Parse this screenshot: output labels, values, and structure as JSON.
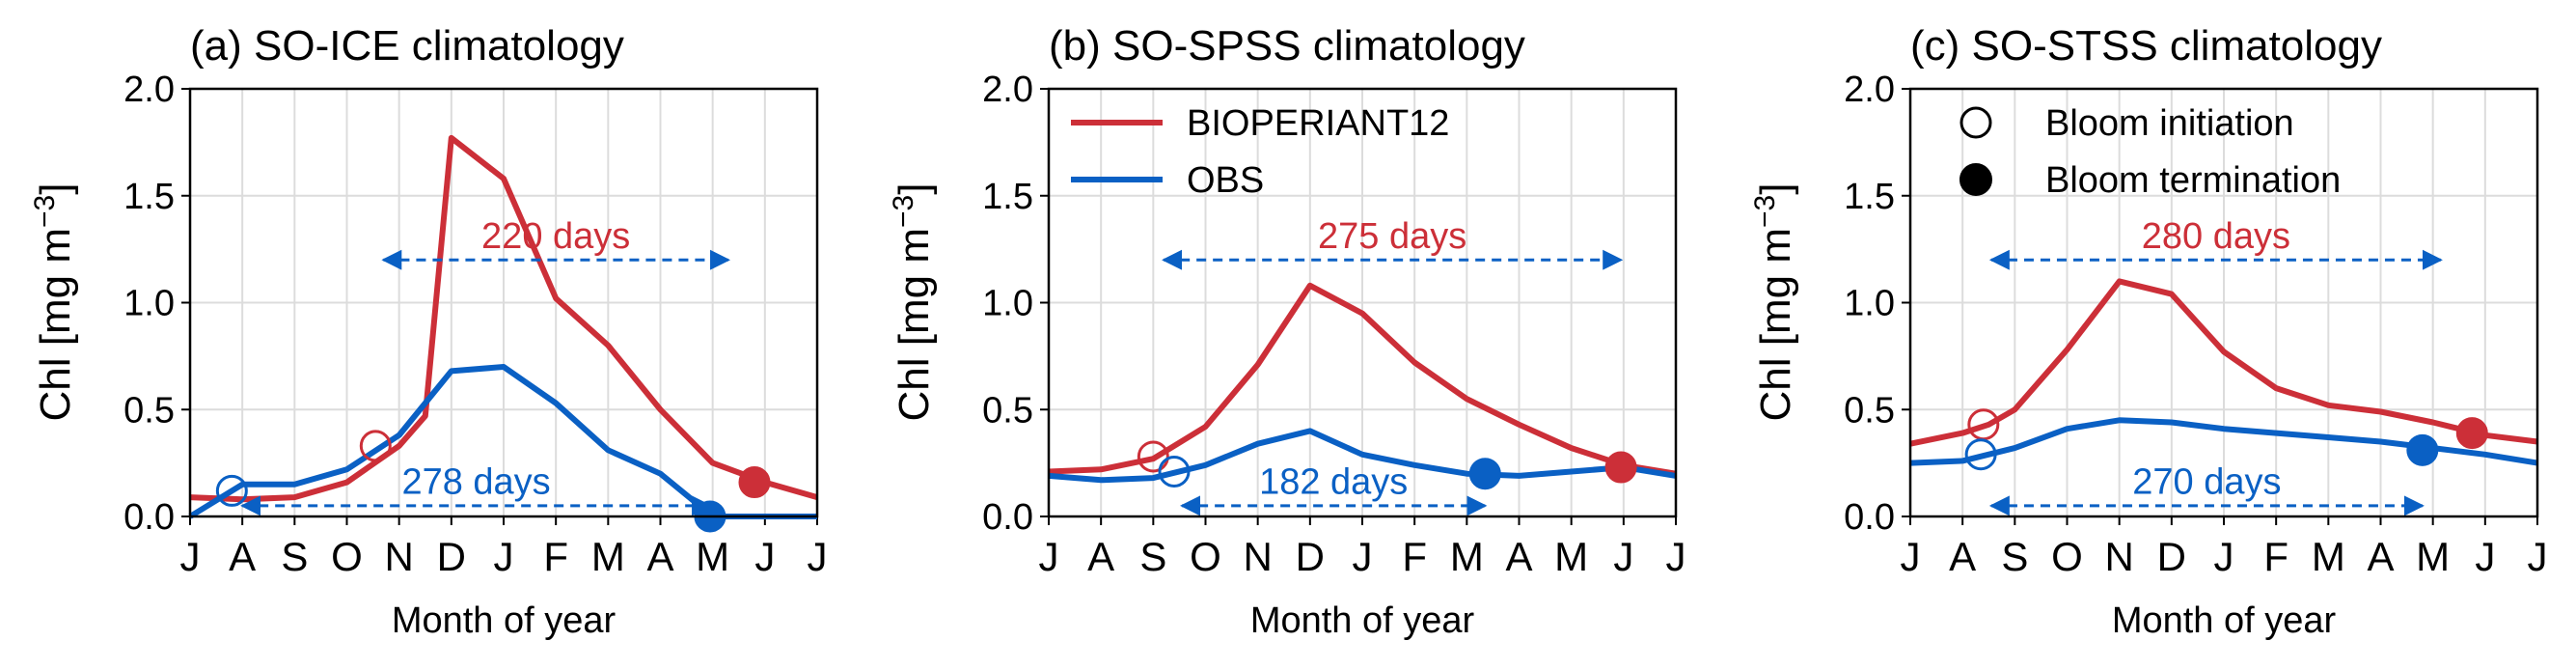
{
  "colors": {
    "model": "#cc2f38",
    "obs": "#0a60c4",
    "grid": "#dcdcdc"
  },
  "chart_data": [
    {
      "type": "line",
      "title": "(a) SO-ICE climatology",
      "xlabel": "Month of year",
      "ylabel": "Chl [mg m",
      "ylabel_sup": "−3",
      "ylabel_end": "]",
      "ylim": [
        0,
        2.0
      ],
      "yticks": [
        "0.0",
        "0.5",
        "1.0",
        "1.5",
        "2.0"
      ],
      "xticks": [
        "J",
        "A",
        "S",
        "O",
        "N",
        "D",
        "J",
        "F",
        "M",
        "A",
        "M",
        "J",
        "J"
      ],
      "grid": true,
      "series": [
        {
          "name": "BIOPERIANT12",
          "color": "#cc2f38",
          "x": [
            0,
            1,
            2,
            3,
            4,
            4.5,
            5,
            6,
            7,
            8,
            9,
            10,
            11,
            12
          ],
          "y": [
            0.09,
            0.08,
            0.09,
            0.16,
            0.33,
            0.47,
            1.77,
            1.58,
            1.02,
            0.8,
            0.5,
            0.25,
            0.16,
            0.09
          ]
        },
        {
          "name": "OBS",
          "color": "#0a60c4",
          "x": [
            0,
            1,
            2,
            3,
            4,
            5,
            6,
            7,
            8,
            9,
            10,
            11,
            12
          ],
          "y": [
            0.0,
            0.15,
            0.15,
            0.22,
            0.38,
            0.68,
            0.7,
            0.53,
            0.31,
            0.2,
            0.0,
            0.0,
            0.0
          ]
        }
      ],
      "markers": [
        {
          "kind": "initiation",
          "series": "BIOPERIANT12",
          "x": 3.55,
          "y": 0.33
        },
        {
          "kind": "termination",
          "series": "BIOPERIANT12",
          "x": 10.8,
          "y": 0.16
        },
        {
          "kind": "initiation",
          "series": "OBS",
          "x": 0.8,
          "y": 0.12
        },
        {
          "kind": "termination",
          "series": "OBS",
          "x": 9.95,
          "y": 0.0
        }
      ],
      "spans": [
        {
          "series": "BIOPERIANT12",
          "x0": 3.7,
          "x1": 10.3,
          "y": 1.2,
          "label": "220 days",
          "label_y": 1.22
        },
        {
          "series": "OBS",
          "x0": 1.0,
          "x1": 9.95,
          "y": 0.05,
          "label": "278 days",
          "label_y": 0.07
        }
      ]
    },
    {
      "type": "line",
      "title": "(b) SO-SPSS climatology",
      "xlabel": "Month of year",
      "ylabel": "Chl [mg m",
      "ylabel_sup": "−3",
      "ylabel_end": "]",
      "ylim": [
        0,
        2.0
      ],
      "yticks": [
        "0.0",
        "0.5",
        "1.0",
        "1.5",
        "2.0"
      ],
      "xticks": [
        "J",
        "A",
        "S",
        "O",
        "N",
        "D",
        "J",
        "F",
        "M",
        "A",
        "M",
        "J",
        "J"
      ],
      "grid": true,
      "series": [
        {
          "name": "BIOPERIANT12",
          "color": "#cc2f38",
          "x": [
            0,
            1,
            2,
            3,
            4,
            5,
            6,
            7,
            8,
            9,
            10,
            11,
            12
          ],
          "y": [
            0.21,
            0.22,
            0.27,
            0.42,
            0.71,
            1.08,
            0.95,
            0.72,
            0.55,
            0.43,
            0.32,
            0.24,
            0.2
          ]
        },
        {
          "name": "OBS",
          "color": "#0a60c4",
          "x": [
            0,
            1,
            2,
            3,
            4,
            5,
            6,
            7,
            8,
            9,
            10,
            11,
            12
          ],
          "y": [
            0.19,
            0.17,
            0.18,
            0.24,
            0.34,
            0.4,
            0.29,
            0.24,
            0.2,
            0.19,
            0.21,
            0.23,
            0.19
          ]
        }
      ],
      "markers": [
        {
          "kind": "initiation",
          "series": "BIOPERIANT12",
          "x": 2.0,
          "y": 0.28
        },
        {
          "kind": "termination",
          "series": "BIOPERIANT12",
          "x": 10.95,
          "y": 0.23
        },
        {
          "kind": "initiation",
          "series": "OBS",
          "x": 2.4,
          "y": 0.21
        },
        {
          "kind": "termination",
          "series": "OBS",
          "x": 8.35,
          "y": 0.2
        }
      ],
      "spans": [
        {
          "series": "BIOPERIANT12",
          "x0": 2.2,
          "x1": 10.95,
          "y": 1.2,
          "label": "275 days",
          "label_y": 1.22
        },
        {
          "series": "OBS",
          "x0": 2.55,
          "x1": 8.35,
          "y": 0.05,
          "label": "182 days",
          "label_y": 0.07
        }
      ],
      "legend": {
        "placement": "top-left",
        "entries": [
          {
            "label": "BIOPERIANT12",
            "color": "#cc2f38"
          },
          {
            "label": "OBS",
            "color": "#0a60c4"
          }
        ]
      }
    },
    {
      "type": "line",
      "title": "(c) SO-STSS climatology",
      "xlabel": "Month of year",
      "ylabel": "Chl [mg m",
      "ylabel_sup": "−3",
      "ylabel_end": "]",
      "ylim": [
        0,
        2.0
      ],
      "yticks": [
        "0.0",
        "0.5",
        "1.0",
        "1.5",
        "2.0"
      ],
      "xticks": [
        "J",
        "A",
        "S",
        "O",
        "N",
        "D",
        "J",
        "F",
        "M",
        "A",
        "M",
        "J",
        "J"
      ],
      "grid": true,
      "series": [
        {
          "name": "BIOPERIANT12",
          "color": "#cc2f38",
          "x": [
            0,
            1,
            1.5,
            2,
            3,
            4,
            5,
            6,
            7,
            8,
            9,
            10,
            11,
            12
          ],
          "y": [
            0.34,
            0.39,
            0.43,
            0.5,
            0.78,
            1.1,
            1.04,
            0.77,
            0.6,
            0.52,
            0.49,
            0.44,
            0.38,
            0.35
          ]
        },
        {
          "name": "OBS",
          "color": "#0a60c4",
          "x": [
            0,
            1,
            2,
            3,
            4,
            5,
            6,
            7,
            8,
            9,
            10,
            11,
            12
          ],
          "y": [
            0.25,
            0.26,
            0.32,
            0.41,
            0.45,
            0.44,
            0.41,
            0.39,
            0.37,
            0.35,
            0.32,
            0.29,
            0.25
          ]
        }
      ],
      "markers": [
        {
          "kind": "initiation",
          "series": "BIOPERIANT12",
          "x": 1.4,
          "y": 0.43
        },
        {
          "kind": "termination",
          "series": "BIOPERIANT12",
          "x": 10.75,
          "y": 0.39
        },
        {
          "kind": "initiation",
          "series": "OBS",
          "x": 1.35,
          "y": 0.29
        },
        {
          "kind": "termination",
          "series": "OBS",
          "x": 9.8,
          "y": 0.31
        }
      ],
      "spans": [
        {
          "series": "BIOPERIANT12",
          "x0": 1.55,
          "x1": 10.15,
          "y": 1.2,
          "label": "280 days",
          "label_y": 1.22
        },
        {
          "series": "OBS",
          "x0": 1.55,
          "x1": 9.8,
          "y": 0.05,
          "label": "270 days",
          "label_y": 0.07
        }
      ],
      "legend": {
        "placement": "top-left",
        "entries": [
          {
            "label": "Bloom initiation",
            "marker": "open-circle"
          },
          {
            "label": "Bloom termination",
            "marker": "filled-circle"
          }
        ]
      }
    }
  ]
}
